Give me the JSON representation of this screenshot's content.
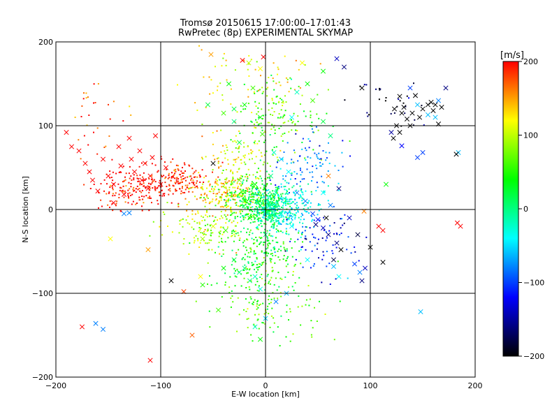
{
  "chart_data": {
    "type": "scatter",
    "title": "Tromsø 20150615 17:00:00–17:01:43",
    "subtitle": "RwPretec (8p) EXPERIMENTAL SKYMAP",
    "xlabel": "E-W location [km]",
    "ylabel": "N-S location [km]",
    "xlim": [
      -200,
      200
    ],
    "ylim": [
      -200,
      200
    ],
    "xticks": [
      -200,
      -100,
      0,
      100,
      200
    ],
    "yticks": [
      -200,
      -100,
      0,
      100,
      200
    ],
    "x_tick_labels": [
      "−200",
      "−100",
      "0",
      "100",
      "200"
    ],
    "y_tick_labels": [
      "−200",
      "−100",
      "0",
      "100",
      "200"
    ],
    "grid": true,
    "colorbar": {
      "label": "[m/s]",
      "range": [
        -200,
        200
      ],
      "ticks": [
        200,
        100,
        0,
        -100,
        -200
      ],
      "tick_labels": [
        "200",
        "100",
        "0",
        "−100",
        "−200"
      ],
      "colormap": [
        "#000000",
        "#0000ff",
        "#00ffff",
        "#00ff00",
        "#ffff00",
        "#ff0000"
      ]
    },
    "series": [
      {
        "marker": "x",
        "points": [
          [
            -190,
            92,
            200
          ],
          [
            -185,
            75,
            200
          ],
          [
            -178,
            70,
            200
          ],
          [
            -172,
            55,
            200
          ],
          [
            -168,
            45,
            200
          ],
          [
            -165,
            35,
            200
          ],
          [
            -160,
            22,
            200
          ],
          [
            -155,
            60,
            200
          ],
          [
            -150,
            40,
            200
          ],
          [
            -145,
            30,
            200
          ],
          [
            -140,
            75,
            200
          ],
          [
            -138,
            52,
            200
          ],
          [
            -135,
            18,
            200
          ],
          [
            -130,
            85,
            200
          ],
          [
            -128,
            60,
            200
          ],
          [
            -125,
            45,
            200
          ],
          [
            -120,
            70,
            200
          ],
          [
            -118,
            35,
            200
          ],
          [
            -115,
            55,
            200
          ],
          [
            -110,
            40,
            200
          ],
          [
            -108,
            62,
            200
          ],
          [
            -105,
            88,
            200
          ],
          [
            -100,
            30,
            200
          ],
          [
            -95,
            50,
            200
          ],
          [
            -112,
            25,
            200
          ],
          [
            -145,
            8,
            200
          ],
          [
            -175,
            -140,
            200
          ],
          [
            -110,
            -180,
            200
          ],
          [
            -112,
            -48,
            150
          ],
          [
            -155,
            -143,
            -80
          ],
          [
            -162,
            -136,
            -80
          ],
          [
            -135,
            -5,
            -80
          ],
          [
            -130,
            -4,
            -80
          ],
          [
            -148,
            -35,
            120
          ],
          [
            -90,
            -85,
            -200
          ],
          [
            -70,
            -150,
            170
          ],
          [
            -52,
            185,
            150
          ],
          [
            -50,
            55,
            -200
          ],
          [
            -38,
            -25,
            60
          ],
          [
            -25,
            -75,
            0
          ],
          [
            -20,
            -70,
            0
          ],
          [
            -15,
            -85,
            0
          ],
          [
            -30,
            -60,
            20
          ],
          [
            -10,
            -80,
            -20
          ],
          [
            -5,
            -95,
            -30
          ],
          [
            -40,
            -70,
            40
          ],
          [
            -60,
            -90,
            50
          ],
          [
            -45,
            -120,
            60
          ],
          [
            -78,
            -98,
            180
          ],
          [
            -62,
            -80,
            120
          ],
          [
            -35,
            150,
            40
          ],
          [
            -30,
            120,
            20
          ],
          [
            -20,
            125,
            40
          ],
          [
            -12,
            145,
            60
          ],
          [
            -5,
            168,
            120
          ],
          [
            -2,
            182,
            200
          ],
          [
            -22,
            178,
            200
          ],
          [
            -16,
            175,
            100
          ],
          [
            -55,
            125,
            20
          ],
          [
            -40,
            115,
            60
          ],
          [
            -5,
            110,
            40
          ],
          [
            -3,
            90,
            60
          ],
          [
            -30,
            105,
            0
          ],
          [
            -25,
            80,
            20
          ],
          [
            8,
            68,
            -20
          ],
          [
            15,
            60,
            -60
          ],
          [
            22,
            45,
            -40
          ],
          [
            30,
            20,
            -80
          ],
          [
            38,
            10,
            -80
          ],
          [
            45,
            -5,
            -100
          ],
          [
            50,
            -12,
            -120
          ],
          [
            55,
            -22,
            -140
          ],
          [
            60,
            -30,
            -160
          ],
          [
            68,
            -40,
            -160
          ],
          [
            72,
            -48,
            -200
          ],
          [
            85,
            -65,
            -100
          ],
          [
            90,
            -75,
            -80
          ],
          [
            70,
            -80,
            -40
          ],
          [
            65,
            -68,
            -60
          ],
          [
            40,
            -60,
            -40
          ],
          [
            20,
            -100,
            -60
          ],
          [
            10,
            -110,
            -80
          ],
          [
            0,
            -130,
            -50
          ],
          [
            -10,
            -140,
            -20
          ],
          [
            -5,
            -155,
            40
          ],
          [
            35,
            175,
            120
          ],
          [
            40,
            150,
            40
          ],
          [
            45,
            130,
            60
          ],
          [
            55,
            105,
            20
          ],
          [
            62,
            88,
            0
          ],
          [
            55,
            165,
            40
          ],
          [
            68,
            180,
            -140
          ],
          [
            75,
            170,
            -160
          ],
          [
            30,
            140,
            -20
          ],
          [
            25,
            110,
            -40
          ],
          [
            60,
            40,
            160
          ],
          [
            55,
            20,
            -40
          ],
          [
            62,
            5,
            -80
          ],
          [
            70,
            25,
            -160
          ],
          [
            58,
            -10,
            -200
          ],
          [
            48,
            -18,
            -160
          ],
          [
            80,
            -10,
            -140
          ],
          [
            88,
            -30,
            -180
          ],
          [
            95,
            -70,
            -140
          ],
          [
            92,
            -85,
            -160
          ],
          [
            65,
            -60,
            -180
          ],
          [
            100,
            -45,
            -200
          ],
          [
            108,
            -20,
            200
          ],
          [
            112,
            -25,
            200
          ],
          [
            115,
            30,
            40
          ],
          [
            112,
            -63,
            -200
          ],
          [
            94,
            -2,
            160
          ],
          [
            92,
            145,
            -200
          ],
          [
            122,
            85,
            -200
          ],
          [
            125,
            100,
            -200
          ],
          [
            128,
            92,
            -200
          ],
          [
            130,
            115,
            -200
          ],
          [
            132,
            122,
            -200
          ],
          [
            135,
            108,
            -200
          ],
          [
            138,
            100,
            -200
          ],
          [
            140,
            115,
            -200
          ],
          [
            143,
            136,
            -200
          ],
          [
            147,
            110,
            -200
          ],
          [
            150,
            120,
            -200
          ],
          [
            155,
            125,
            -200
          ],
          [
            160,
            118,
            -200
          ],
          [
            165,
            102,
            -200
          ],
          [
            158,
            128,
            -200
          ],
          [
            162,
            125,
            -200
          ],
          [
            168,
            122,
            -200
          ],
          [
            128,
            135,
            -200
          ],
          [
            123,
            120,
            -200
          ],
          [
            120,
            92,
            -150
          ],
          [
            150,
            68,
            -100
          ],
          [
            165,
            130,
            -80
          ],
          [
            172,
            145,
            -160
          ],
          [
            145,
            62,
            -100
          ],
          [
            138,
            145,
            -100
          ],
          [
            145,
            125,
            -60
          ],
          [
            155,
            113,
            -60
          ],
          [
            162,
            110,
            -60
          ],
          [
            130,
            76,
            -120
          ],
          [
            184,
            68,
            -60
          ],
          [
            182,
            66,
            -200
          ],
          [
            148,
            -122,
            -60
          ],
          [
            183,
            -16,
            200
          ],
          [
            186,
            -20,
            200
          ],
          [
            -60,
            -35,
            90
          ],
          [
            -50,
            -20,
            110
          ],
          [
            -20,
            10,
            60
          ],
          [
            -10,
            30,
            40
          ],
          [
            -5,
            5,
            20
          ],
          [
            5,
            40,
            0
          ],
          [
            10,
            20,
            -20
          ],
          [
            -15,
            -10,
            40
          ],
          [
            15,
            -5,
            -30
          ],
          [
            25,
            -20,
            -40
          ],
          [
            -25,
            35,
            80
          ],
          [
            0,
            -30,
            0
          ]
        ]
      },
      {
        "marker": "dot",
        "clusters": [
          {
            "center": [
              -125,
              25
            ],
            "spread": [
              30,
              22
            ],
            "value": 200,
            "count": 180
          },
          {
            "center": [
              -80,
              35
            ],
            "spread": [
              25,
              20
            ],
            "value": 190,
            "count": 150
          },
          {
            "center": [
              -40,
              20
            ],
            "spread": [
              25,
              20
            ],
            "value": 130,
            "count": 180
          },
          {
            "center": [
              -25,
              60
            ],
            "spread": [
              30,
              30
            ],
            "value": 110,
            "count": 120
          },
          {
            "center": [
              -55,
              -20
            ],
            "spread": [
              35,
              25
            ],
            "value": 100,
            "count": 150
          },
          {
            "center": [
              -10,
              10
            ],
            "spread": [
              20,
              25
            ],
            "value": 30,
            "count": 350
          },
          {
            "center": [
              5,
              0
            ],
            "spread": [
              12,
              18
            ],
            "value": -10,
            "count": 250
          },
          {
            "center": [
              25,
              5
            ],
            "spread": [
              22,
              30
            ],
            "value": -40,
            "count": 200
          },
          {
            "center": [
              -5,
              -50
            ],
            "spread": [
              30,
              35
            ],
            "value": 40,
            "count": 220
          },
          {
            "center": [
              0,
              -110
            ],
            "spread": [
              40,
              40
            ],
            "value": 60,
            "count": 150
          },
          {
            "center": [
              15,
              110
            ],
            "spread": [
              35,
              40
            ],
            "value": 60,
            "count": 150
          },
          {
            "center": [
              -20,
              150
            ],
            "spread": [
              50,
              30
            ],
            "value": 120,
            "count": 60
          },
          {
            "center": [
              55,
              -40
            ],
            "spread": [
              30,
              30
            ],
            "value": -120,
            "count": 80
          },
          {
            "center": [
              45,
              55
            ],
            "spread": [
              30,
              30
            ],
            "value": -80,
            "count": 80
          },
          {
            "center": [
              120,
              120
            ],
            "spread": [
              30,
              30
            ],
            "value": -180,
            "count": 30
          },
          {
            "center": [
              -160,
              110
            ],
            "spread": [
              25,
              40
            ],
            "value": 170,
            "count": 30
          }
        ]
      }
    ]
  }
}
